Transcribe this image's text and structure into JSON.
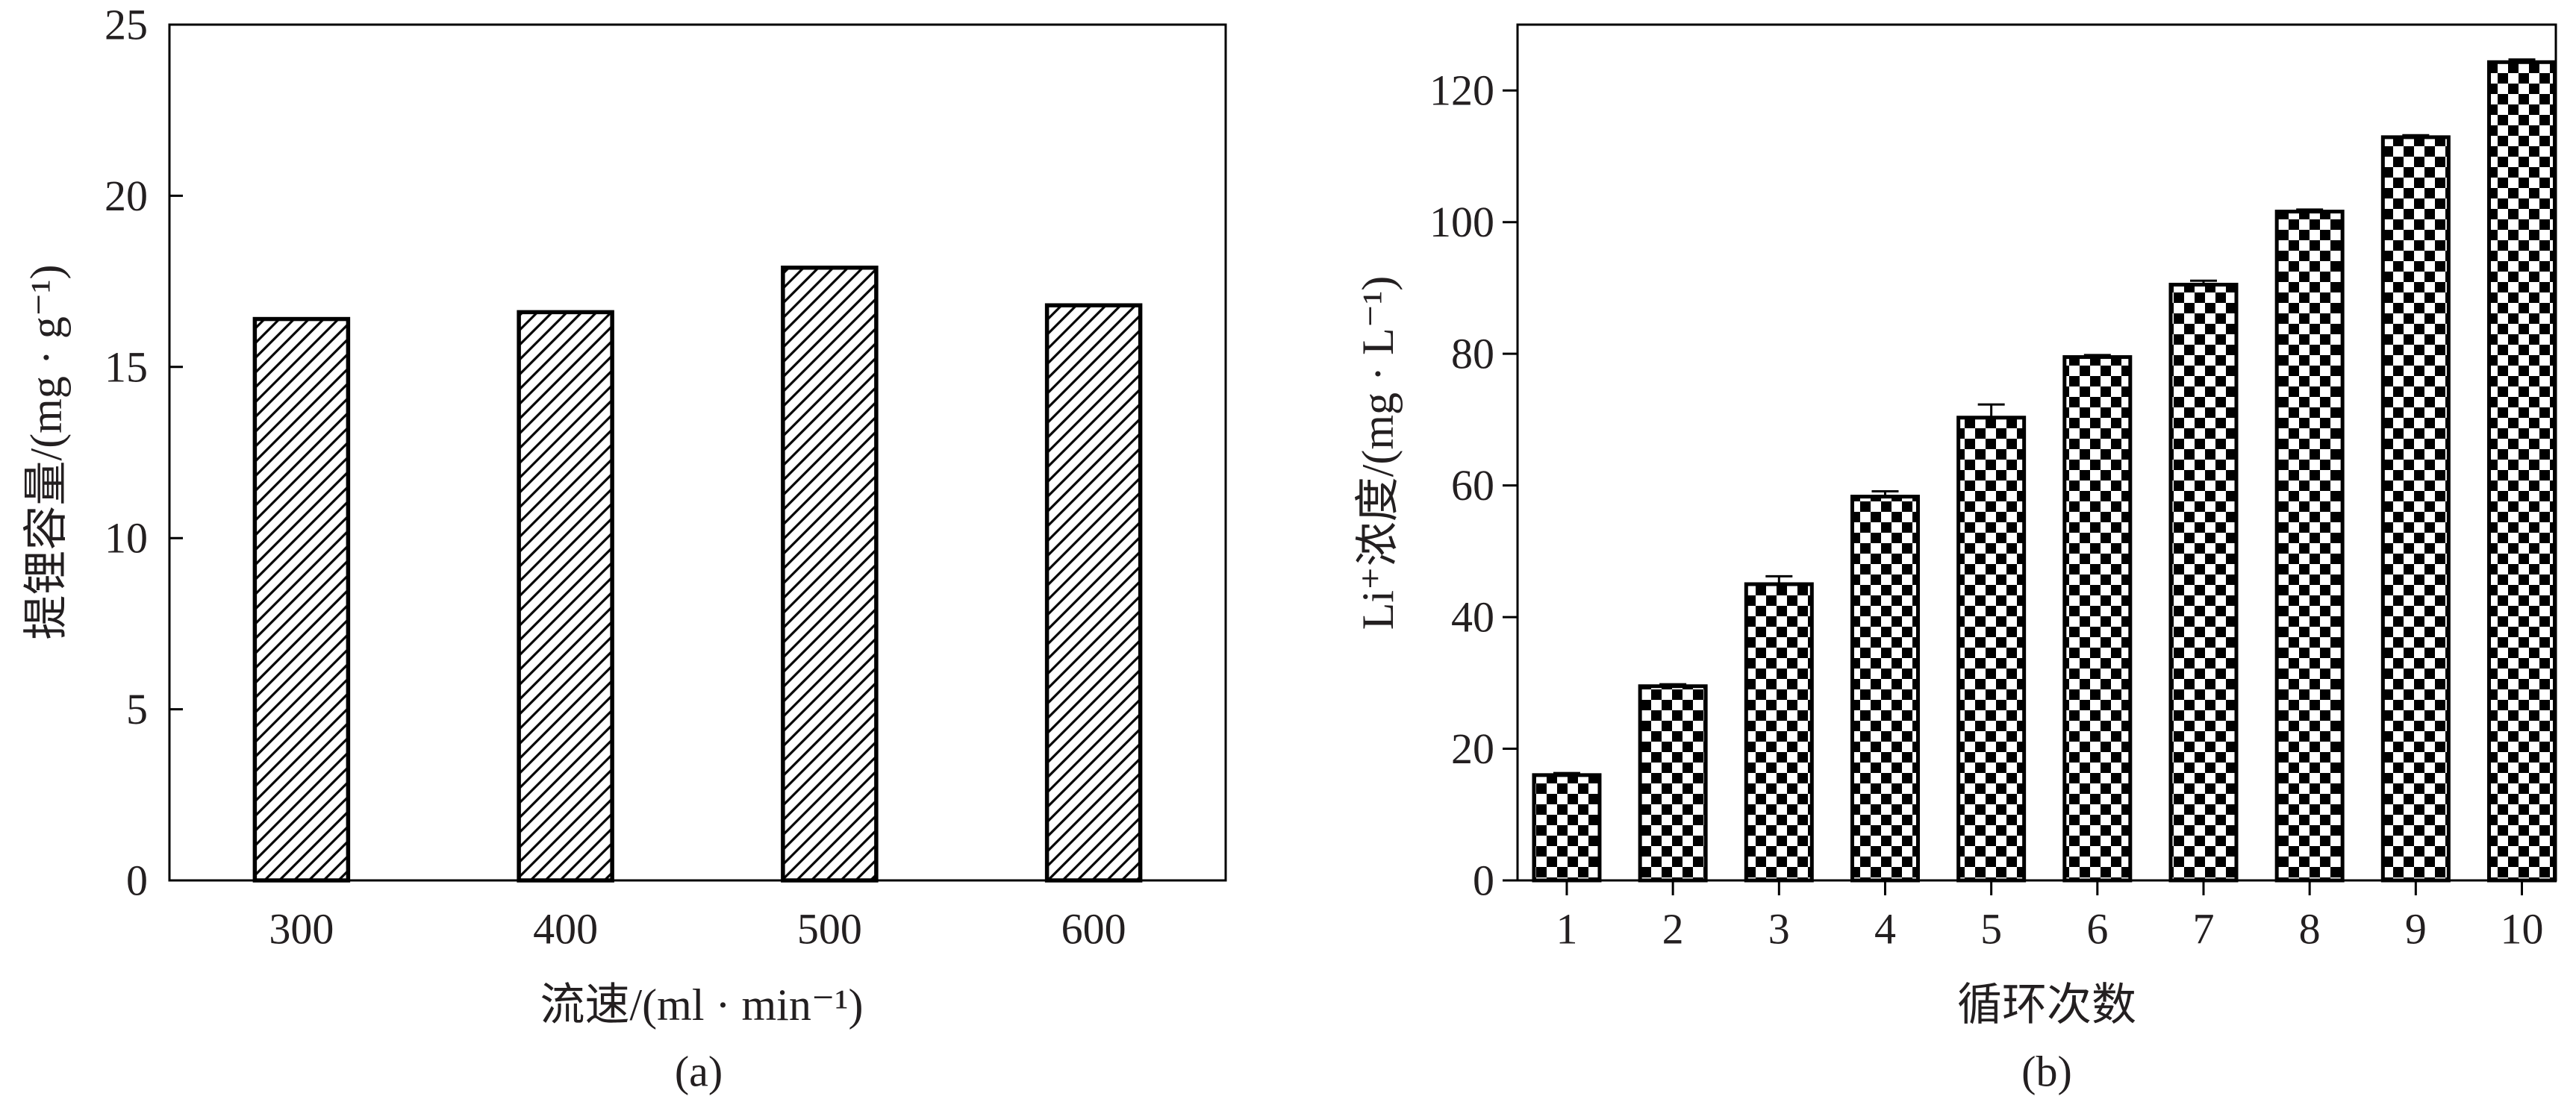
{
  "colors": {
    "ink": "#231f20",
    "bar_edge": "#000000",
    "pattern": "#000000",
    "background": "#ffffff"
  },
  "chart_data": [
    {
      "type": "bar",
      "panel_label": "(a)",
      "categories": [
        "300",
        "400",
        "500",
        "600"
      ],
      "values": [
        16.4,
        16.6,
        17.9,
        16.8
      ],
      "xlabel": "流速/(ml · min⁻¹)",
      "ylabel": "提锂容量/(mg · g⁻¹)",
      "ylim": [
        0,
        25
      ],
      "yticks": [
        "0",
        "5",
        "10",
        "15",
        "20",
        "25"
      ],
      "bar_pattern": "diagonal-hatch",
      "grid": false
    },
    {
      "type": "bar",
      "panel_label": "(b)",
      "categories": [
        "1",
        "2",
        "3",
        "4",
        "5",
        "6",
        "7",
        "8",
        "9",
        "10"
      ],
      "values": [
        16.0,
        29.5,
        45.0,
        58.3,
        70.3,
        79.5,
        90.5,
        101.6,
        112.9,
        124.3
      ],
      "errors": [
        0.3,
        0.3,
        1.2,
        0.8,
        2.0,
        0.3,
        0.6,
        0.3,
        0.3,
        0.4
      ],
      "xlabel": "循环次数",
      "ylabel": "Li⁺浓度/(mg · L⁻¹)",
      "ylim": [
        0,
        130
      ],
      "yticks": [
        "0",
        "20",
        "40",
        "60",
        "80",
        "100",
        "120"
      ],
      "bar_pattern": "checkerboard",
      "grid": false
    }
  ]
}
